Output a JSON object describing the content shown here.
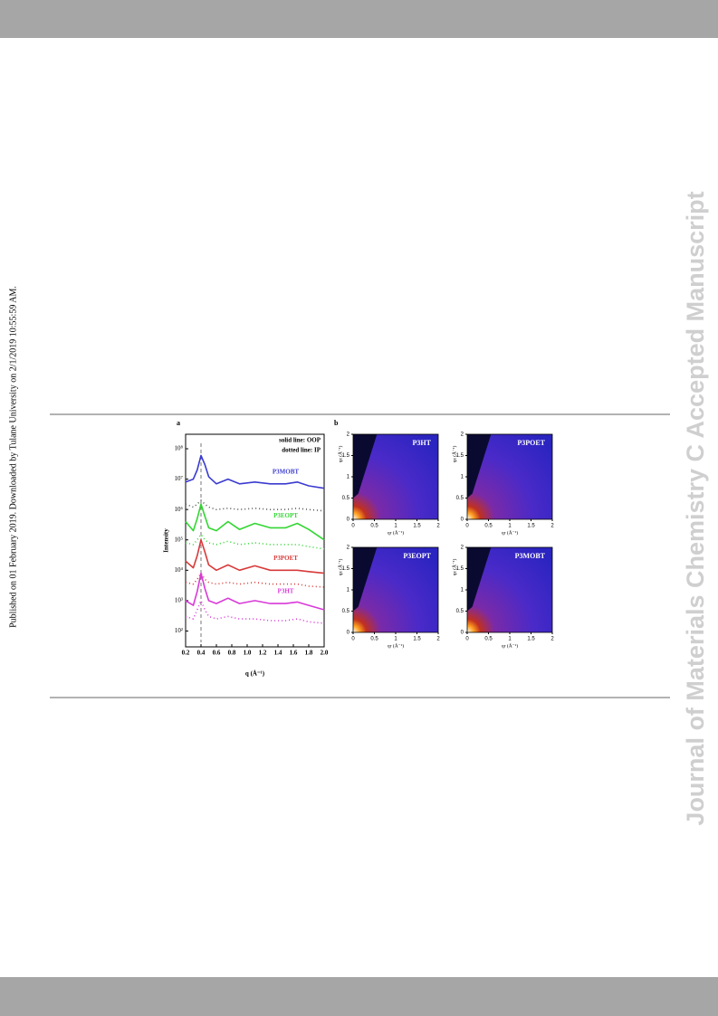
{
  "side_note": "Published on 01 February 2019. Downloaded by Tulane University on 2/1/2019 10:55:59 AM.",
  "watermark": "Journal of Materials Chemistry C Accepted Manuscript",
  "chart_data": [
    {
      "type": "line",
      "panel": "a",
      "log_y": true,
      "ylabel": "Intensity",
      "xlabel": "q (Å⁻¹)",
      "annotations": [
        "solid line: OOP",
        "dotted line: IP"
      ],
      "vline": 0.4,
      "x": [
        0.2,
        0.3,
        0.35,
        0.4,
        0.45,
        0.5,
        0.6,
        0.75,
        0.9,
        1.1,
        1.3,
        1.5,
        1.65,
        1.8,
        2.0
      ],
      "xlim": [
        0.2,
        2.0
      ],
      "xticks": [
        0.2,
        0.4,
        0.6,
        0.8,
        {
          "value": 1.0,
          "label": "1.0"
        },
        1.2,
        1.4,
        1.6,
        1.8,
        {
          "value": 2.0,
          "label": "2.0"
        }
      ],
      "ylim": [
        30,
        300000000
      ],
      "yticks": [
        {
          "value": 100,
          "label": "10²"
        },
        {
          "value": 1000,
          "label": "10³"
        },
        {
          "value": 10000,
          "label": "10⁴"
        },
        {
          "value": 100000,
          "label": "10⁵"
        },
        {
          "value": 1000000,
          "label": "10⁶"
        },
        {
          "value": 10000000,
          "label": "10⁷"
        },
        {
          "value": 100000000,
          "label": "10⁸"
        }
      ],
      "series": [
        {
          "name": "P3MOBT",
          "color": "#3b3bd0",
          "style": "solid",
          "values": [
            8000000.0,
            10000000.0,
            20000000.0,
            60000000.0,
            30000000.0,
            12000000.0,
            7000000.0,
            10000000.0,
            7000000.0,
            8000000.0,
            7000000.0,
            7000000.0,
            8000000.0,
            6000000.0,
            5000000.0
          ]
        },
        {
          "color": "#555555",
          "style": "dotted",
          "values": [
            1500000.0,
            1200000.0,
            1500000.0,
            2000000.0,
            1500000.0,
            1200000.0,
            1000000.0,
            1100000.0,
            1000000.0,
            1100000.0,
            1000000.0,
            1000000.0,
            1100000.0,
            1000000.0,
            900000.0
          ]
        },
        {
          "name": "P3EOPT",
          "color": "#33d633",
          "style": "solid",
          "values": [
            400000.0,
            200000.0,
            500000.0,
            1500000.0,
            600000.0,
            250000.0,
            200000.0,
            400000.0,
            220000.0,
            350000.0,
            250000.0,
            250000.0,
            350000.0,
            220000.0,
            100000.0
          ]
        },
        {
          "color": "#33d633",
          "style": "dotted",
          "values": [
            80000.0,
            70000.0,
            100000.0,
            150000.0,
            100000.0,
            80000.0,
            70000.0,
            90000.0,
            70000.0,
            80000.0,
            70000.0,
            70000.0,
            70000.0,
            60000.0,
            50000.0
          ]
        },
        {
          "name": "P3POET",
          "color": "#d83a3a",
          "style": "solid",
          "values": [
            20000.0,
            12000.0,
            30000.0,
            100000.0,
            40000.0,
            15000.0,
            10000.0,
            15000.0,
            10000.0,
            14000.0,
            10000.0,
            10000.0,
            10000.0,
            9000.0,
            8000.0
          ]
        },
        {
          "color": "#d83a3a",
          "style": "dotted",
          "values": [
            4000.0,
            3500.0,
            5000.0,
            8000.0,
            5000.0,
            4000.0,
            3500.0,
            4000.0,
            3500.0,
            4000.0,
            3500.0,
            3500.0,
            3500.0,
            3000.0,
            2800.0
          ]
        },
        {
          "name": "P3HT",
          "color": "#d83ad8",
          "style": "solid",
          "values": [
            1000.0,
            700.0,
            2000.0,
            8000.0,
            2500.0,
            1000.0,
            800.0,
            1200.0,
            800.0,
            1000.0,
            800.0,
            800.0,
            900.0,
            700.0,
            500.0
          ]
        },
        {
          "color": "#d83ad8",
          "style": "dotted",
          "values": [
            300.0,
            250.0,
            500.0,
            1000.0,
            500.0,
            300.0,
            250.0,
            300.0,
            250.0,
            250.0,
            220.0,
            220.0,
            250.0,
            200.0,
            180.0
          ]
        }
      ]
    },
    {
      "type": "image-grid",
      "panel": "b",
      "ylabel": "qz (Å⁻¹)",
      "xlabel": "qr (Å⁻¹)",
      "xlim": [
        0,
        2
      ],
      "ylim": [
        0,
        2
      ],
      "xticks": [
        0,
        0.5,
        1,
        1.5,
        2
      ],
      "yticks": [
        0,
        0.5,
        1,
        1.5,
        2
      ],
      "panels": [
        "P3HT",
        "P3POET",
        "P3EOPT",
        "P3MOBT"
      ]
    }
  ]
}
